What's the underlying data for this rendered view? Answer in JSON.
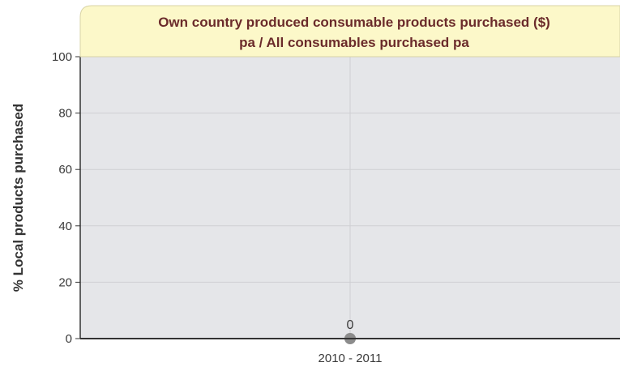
{
  "chart_data": {
    "type": "line",
    "title": "Own country produced consumable products purchased ($) pa / All consumables purchased pa",
    "title_lines": [
      "Own country produced consumable products purchased ($)",
      "pa / All consumables purchased pa"
    ],
    "xlabel": "",
    "ylabel": "% Local products purchased",
    "categories": [
      "2010 - 2011"
    ],
    "series": [
      {
        "values": [
          0
        ],
        "data_labels": [
          "0"
        ],
        "color": "#8c8c8c"
      }
    ],
    "ylim": [
      0,
      100
    ],
    "yticks": [
      0,
      20,
      40,
      60,
      80,
      100
    ],
    "ytick_labels": [
      "0",
      "20",
      "40",
      "60",
      "80",
      "100"
    ],
    "grid": true,
    "legend": "none"
  },
  "colors": {
    "title_background": "#fcf8c9",
    "title_text": "#6b2b2b",
    "plot_background": "#e5e6e9",
    "grid": "#cfcfd3",
    "axis": "#333333",
    "tick_text": "#3a3a3a",
    "label_text": "#333333",
    "marker": "#8c8c8c"
  }
}
